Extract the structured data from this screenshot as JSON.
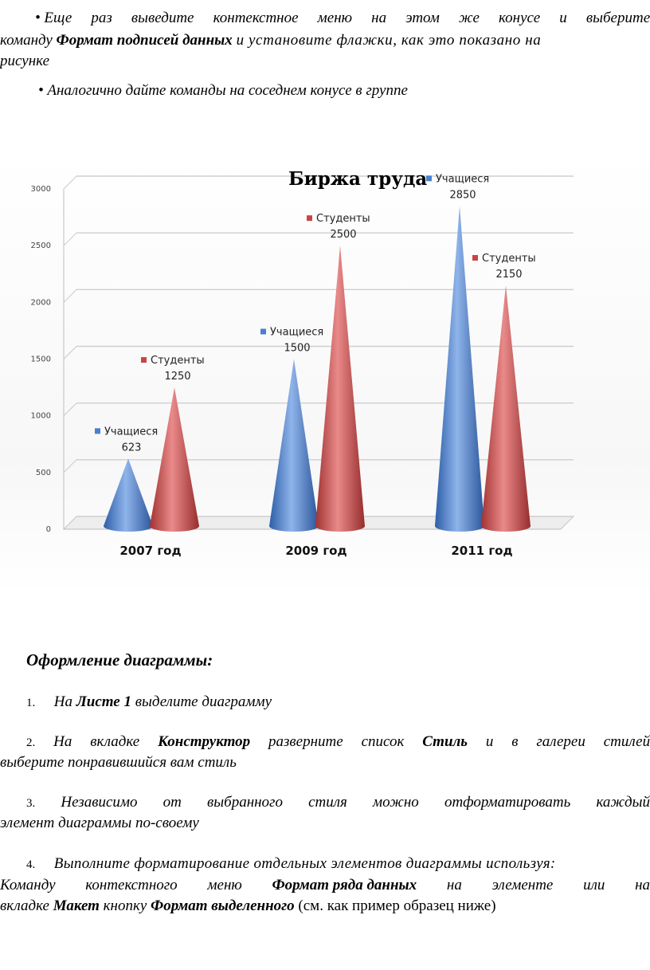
{
  "intro": {
    "bullet1_line1_words": [
      "• Еще",
      "раз",
      "выведите",
      "контекстное",
      "меню",
      "на",
      "этом",
      "же",
      "конусе",
      "и",
      "выберите"
    ],
    "bullet1_line2_pre": "команду",
    "bullet1_line2_bold": "Формат подписей данных",
    "bullet1_line2_post": "и установите флажки, как это показано на",
    "bullet1_line3": "рисунке",
    "bullet2": "• Аналогично дайте команды на соседнем конусе в группе"
  },
  "chart_data": {
    "type": "bar",
    "title": "Биржа труда",
    "categories": [
      "2007 год",
      "2009 год",
      "2011 год"
    ],
    "series": [
      {
        "name": "Учащиеся",
        "values": [
          623,
          1500,
          2850
        ],
        "color": "#4a7fcf"
      },
      {
        "name": "Студенты",
        "values": [
          1250,
          2500,
          2150
        ],
        "color": "#c94545"
      }
    ],
    "ylim": [
      0,
      3000
    ],
    "yticks": [
      "0",
      "500",
      "1000",
      "1500",
      "2000",
      "2500",
      "3000"
    ],
    "grid": true,
    "shape": "cone"
  },
  "section": {
    "heading": "Оформление диаграммы:",
    "steps": [
      {
        "num": "1.",
        "pre": "На",
        "bold": "Листе 1",
        "post": "выделите диаграмму"
      },
      {
        "num": "2.",
        "line1_words": [
          "На",
          "вкладке",
          "Конструктор",
          "разверните",
          "список",
          "Стиль",
          "и",
          "в",
          "галереи",
          "стилей"
        ],
        "line2": "выберите понравившийся вам стиль"
      },
      {
        "num": "3.",
        "line1_words": [
          "Независимо",
          "от",
          "выбранного",
          "стиля",
          "можно",
          "отформатировать",
          "каждый"
        ],
        "line2": "элемент диаграммы по-своему"
      },
      {
        "num": "4.",
        "line1": "Выполните форматирование отдельных элементов диаграммы используя:",
        "line2_words": [
          "Команду",
          "контекстного",
          "меню",
          "Формат ряда данных",
          "на",
          "элементе",
          "или",
          "на"
        ],
        "line3_pre": "вкладке",
        "line3_b1": "Макет",
        "line3_mid": "кнопку",
        "line3_b2": "Формат выделенного",
        "line3_post": "(см. как пример образец ниже)"
      }
    ]
  }
}
